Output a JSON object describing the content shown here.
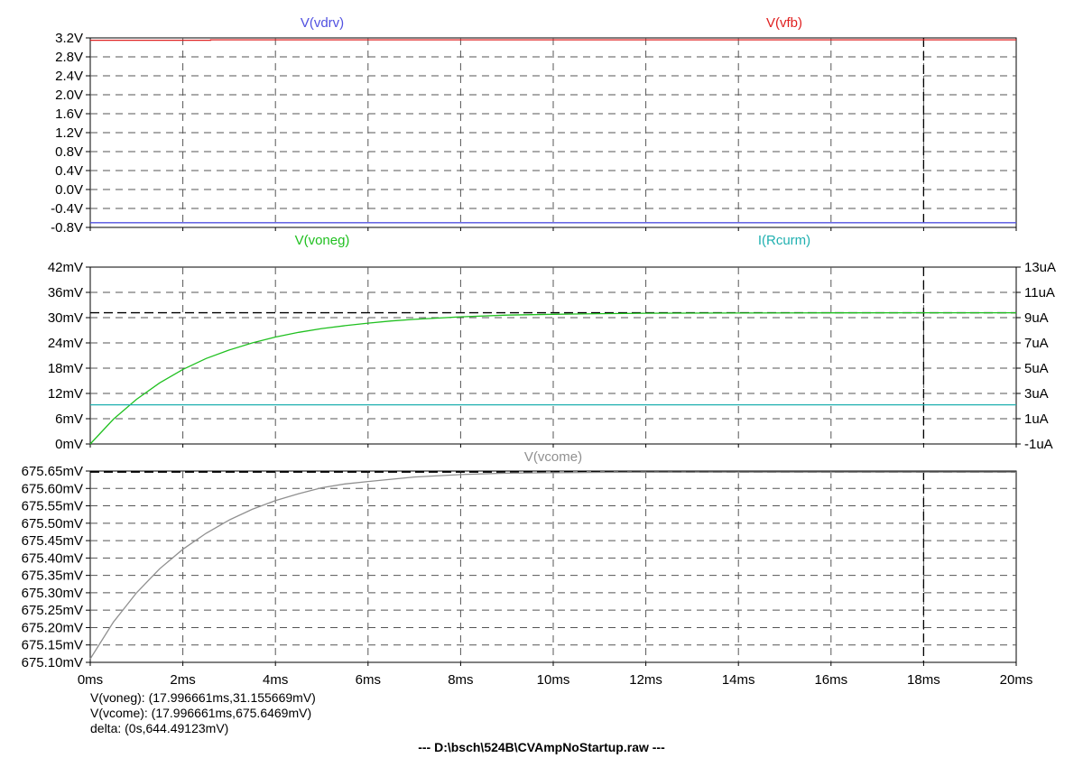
{
  "window": {
    "footer_text": "---  D:\\bsch\\524B\\CVAmpNoStartup.raw  ---"
  },
  "readouts": {
    "line1": "V(voneg): (17.996661ms,31.155669mV)",
    "line2": "V(vcome): (17.996661ms,675.6469mV)",
    "line3": "delta: (0s,644.49123mV)"
  },
  "chart_data": [
    {
      "type": "line",
      "pane": "top",
      "x_unit": "ms",
      "xlim": [
        0,
        20
      ],
      "x_ticks": [
        0,
        2,
        4,
        6,
        8,
        10,
        12,
        14,
        16,
        18,
        20
      ],
      "x_tick_labels": [
        "0ms",
        "2ms",
        "4ms",
        "6ms",
        "8ms",
        "10ms",
        "12ms",
        "14ms",
        "16ms",
        "18ms",
        "20ms"
      ],
      "ylim": [
        -0.8,
        3.2
      ],
      "y_ticks": [
        -0.8,
        -0.4,
        0.0,
        0.4,
        0.8,
        1.2,
        1.6,
        2.0,
        2.4,
        2.8,
        3.2
      ],
      "y_tick_labels": [
        "-0.8V",
        "-0.4V",
        "0.0V",
        "0.4V",
        "0.8V",
        "1.2V",
        "1.6V",
        "2.0V",
        "2.4V",
        "2.8V",
        "3.2V"
      ],
      "grid": true,
      "series": [
        {
          "name": "V(vdrv)",
          "color": "#5050e0",
          "x": [
            0,
            20
          ],
          "y": [
            -0.7,
            -0.7
          ]
        },
        {
          "name": "V(vfb)",
          "color": "#e02020",
          "x": [
            0,
            2.6,
            2.6,
            20
          ],
          "y": [
            3.15,
            3.15,
            3.16,
            3.16
          ]
        }
      ],
      "cursors_x": [
        18
      ]
    },
    {
      "type": "line",
      "pane": "middle",
      "x_unit": "ms",
      "xlim": [
        0,
        20
      ],
      "x_ticks": [
        0,
        2,
        4,
        6,
        8,
        10,
        12,
        14,
        16,
        18,
        20
      ],
      "ylim": [
        0,
        42
      ],
      "y_ticks": [
        0,
        6,
        12,
        18,
        24,
        30,
        36,
        42
      ],
      "y_tick_labels": [
        "0mV",
        "6mV",
        "12mV",
        "18mV",
        "24mV",
        "30mV",
        "36mV",
        "42mV"
      ],
      "y2lim": [
        -1,
        13
      ],
      "y2_ticks": [
        -1,
        1,
        3,
        5,
        7,
        9,
        11,
        13
      ],
      "y2_tick_labels": [
        "-1uA",
        "1uA",
        "3uA",
        "5uA",
        "7uA",
        "9uA",
        "11uA",
        "13uA"
      ],
      "grid": true,
      "series": [
        {
          "name": "V(voneg)",
          "color": "#20c020",
          "axis": "left",
          "x": [
            0,
            0.5,
            1,
            1.5,
            2,
            2.5,
            3,
            3.5,
            4,
            4.5,
            5,
            5.5,
            6,
            6.5,
            7,
            7.5,
            8,
            9,
            10,
            11,
            12,
            14,
            16,
            18,
            20
          ],
          "y": [
            0,
            5.9,
            10.6,
            14.5,
            17.7,
            20.3,
            22.3,
            24.0,
            25.4,
            26.5,
            27.4,
            28.1,
            28.7,
            29.2,
            29.6,
            29.9,
            30.2,
            30.6,
            30.8,
            30.95,
            31.05,
            31.1,
            31.14,
            31.16,
            31.16
          ]
        },
        {
          "name": "I(Rcurm)",
          "color": "#20b0b0",
          "axis": "right",
          "x": [
            0,
            20
          ],
          "y": [
            2.1,
            2.1
          ]
        }
      ],
      "cursors_x": [
        18
      ],
      "cursors_y": [
        31.16
      ]
    },
    {
      "type": "line",
      "pane": "bottom",
      "x_unit": "ms",
      "xlim": [
        0,
        20
      ],
      "x_ticks": [
        0,
        2,
        4,
        6,
        8,
        10,
        12,
        14,
        16,
        18,
        20
      ],
      "x_tick_labels": [
        "0ms",
        "2ms",
        "4ms",
        "6ms",
        "8ms",
        "10ms",
        "12ms",
        "14ms",
        "16ms",
        "18ms",
        "20ms"
      ],
      "ylim": [
        675.1,
        675.65
      ],
      "y_ticks": [
        675.1,
        675.15,
        675.2,
        675.25,
        675.3,
        675.35,
        675.4,
        675.45,
        675.5,
        675.55,
        675.6,
        675.65
      ],
      "y_tick_labels": [
        "675.10mV",
        "675.15mV",
        "675.20mV",
        "675.25mV",
        "675.30mV",
        "675.35mV",
        "675.40mV",
        "675.45mV",
        "675.50mV",
        "675.55mV",
        "675.60mV",
        "675.65mV"
      ],
      "grid": true,
      "series": [
        {
          "name": "V(vcome)",
          "color": "#909090",
          "x": [
            0,
            0.5,
            1,
            1.5,
            2,
            2.5,
            3,
            3.5,
            4,
            4.5,
            5,
            5.5,
            6,
            7,
            8,
            9,
            10,
            11,
            12,
            14,
            16,
            18,
            20
          ],
          "y": [
            675.11,
            675.216,
            675.3,
            675.369,
            675.425,
            675.471,
            675.509,
            675.54,
            675.565,
            675.585,
            675.602,
            675.613,
            675.62,
            675.633,
            675.64,
            675.644,
            675.645,
            675.646,
            675.6465,
            675.6468,
            675.6469,
            675.6469,
            675.6469
          ]
        }
      ],
      "cursors_x": [
        18
      ],
      "cursors_y": [
        675.6469
      ]
    }
  ]
}
